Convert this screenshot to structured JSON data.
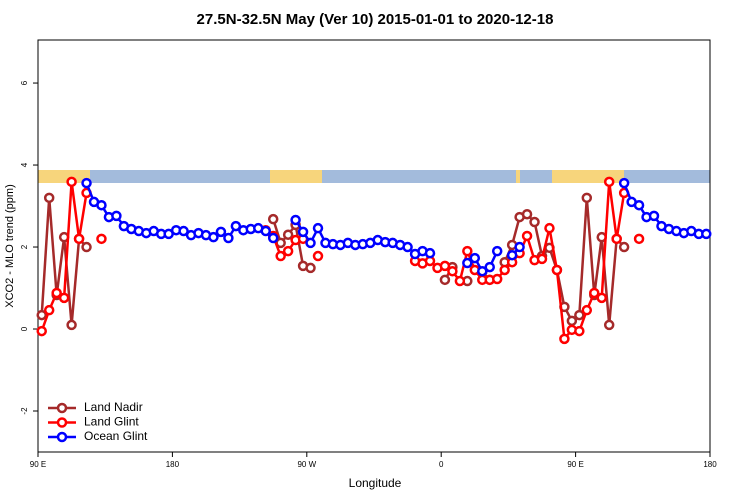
{
  "chart_data": {
    "type": "line",
    "title": "27.5N-32.5N May (Ver 10)   2015-01-01 to 2020-12-18",
    "x_label": "Longitude",
    "y_label": "XCO2 - MLO trend (ppm)",
    "x": [
      92.5,
      97.5,
      102.5,
      107.5,
      112.5,
      117.5,
      122.5,
      127.5,
      132.5,
      137.5,
      142.5,
      147.5,
      152.5,
      157.5,
      162.5,
      167.5,
      172.5,
      177.5,
      182.5,
      187.5,
      192.5,
      197.5,
      202.5,
      207.5,
      212.5,
      217.5,
      222.5,
      227.5,
      232.5,
      237.5,
      242.5,
      247.5,
      252.5,
      257.5,
      262.5,
      267.5,
      272.5,
      277.5,
      282.5,
      287.5,
      292.5,
      297.5,
      302.5,
      307.5,
      312.5,
      317.5,
      322.5,
      327.5,
      332.5,
      337.5,
      342.5,
      347.5,
      352.5,
      357.5,
      362.5,
      367.5,
      372.5,
      377.5,
      382.5,
      387.5,
      392.5,
      397.5,
      402.5,
      407.5,
      412.5,
      417.5,
      422.5,
      427.5,
      432.5,
      437.5,
      442.5,
      447.5,
      452.5,
      457.5,
      462.5,
      467.5,
      472.5,
      477.5,
      482.5,
      487.5,
      492.5,
      497.5,
      502.5,
      507.5,
      512.5,
      517.5,
      522.5,
      527.5,
      532.5,
      537.5
    ],
    "series": [
      {
        "name": "Land Nadir",
        "color": "#a52a2a",
        "values": [
          0.34,
          3.2,
          0.83,
          2.24,
          0.1,
          2.2,
          2.0,
          null,
          null,
          null,
          null,
          null,
          null,
          null,
          null,
          null,
          null,
          null,
          null,
          null,
          null,
          null,
          null,
          null,
          null,
          null,
          null,
          null,
          null,
          null,
          null,
          2.68,
          2.1,
          2.3,
          2.54,
          1.54,
          1.49,
          null,
          null,
          null,
          null,
          null,
          null,
          null,
          null,
          null,
          null,
          null,
          null,
          null,
          null,
          null,
          null,
          null,
          1.2,
          1.51,
          null,
          1.17,
          null,
          1.39,
          1.2,
          null,
          1.63,
          2.05,
          2.73,
          2.8,
          2.61,
          1.78,
          1.98,
          1.44,
          0.54,
          0.2,
          0.34,
          3.2,
          0.83,
          2.24,
          0.1,
          2.2,
          2.0,
          null,
          null,
          null,
          null,
          null,
          null,
          null,
          null,
          null,
          null,
          null
        ]
      },
      {
        "name": "Land Glint",
        "color": "#ff0000",
        "values": [
          -0.05,
          0.46,
          0.88,
          0.76,
          3.59,
          2.2,
          3.32,
          null,
          2.2,
          null,
          null,
          null,
          null,
          null,
          null,
          null,
          null,
          null,
          null,
          null,
          null,
          null,
          null,
          null,
          null,
          null,
          null,
          null,
          null,
          null,
          2.41,
          2.27,
          1.78,
          1.9,
          2.17,
          2.2,
          null,
          1.78,
          null,
          null,
          null,
          null,
          null,
          null,
          null,
          null,
          null,
          null,
          null,
          null,
          1.66,
          1.6,
          1.66,
          1.49,
          1.54,
          1.41,
          1.17,
          1.9,
          1.44,
          1.2,
          1.2,
          1.22,
          1.44,
          1.63,
          1.85,
          2.27,
          1.68,
          1.71,
          2.46,
          1.44,
          -0.24,
          -0.02,
          -0.05,
          0.46,
          0.88,
          0.76,
          3.59,
          2.2,
          3.32,
          null,
          2.2,
          null,
          null,
          null,
          null,
          null,
          null,
          null,
          null,
          null
        ]
      },
      {
        "name": "Ocean Glint",
        "color": "#0000ff",
        "values": [
          null,
          null,
          null,
          null,
          null,
          null,
          3.56,
          3.1,
          3.02,
          2.73,
          2.76,
          2.51,
          2.44,
          2.39,
          2.34,
          2.39,
          2.32,
          2.32,
          2.41,
          2.39,
          2.29,
          2.34,
          2.29,
          2.24,
          2.37,
          2.22,
          2.51,
          2.41,
          2.44,
          2.46,
          2.39,
          2.22,
          null,
          null,
          2.66,
          2.37,
          2.1,
          2.46,
          2.1,
          2.07,
          2.05,
          2.1,
          2.05,
          2.07,
          2.1,
          2.17,
          2.12,
          2.1,
          2.05,
          2.0,
          1.83,
          1.9,
          1.85,
          null,
          null,
          null,
          null,
          1.61,
          1.73,
          1.41,
          1.51,
          1.9,
          null,
          1.8,
          2.0,
          null,
          null,
          null,
          null,
          null,
          null,
          null,
          null,
          null,
          null,
          null,
          null,
          null,
          3.56,
          3.1,
          3.02,
          2.73,
          2.76,
          2.51,
          2.44,
          2.39,
          2.34,
          2.39,
          2.32,
          2.32
        ]
      }
    ],
    "xlim": [
      90,
      540
    ],
    "xticks": [
      {
        "value": 90,
        "label": "90 E"
      },
      180,
      {
        "value": 270,
        "label": "90 W"
      },
      {
        "value": 360,
        "label": "0"
      },
      {
        "value": 450,
        "label": "90 E"
      },
      {
        "value": 540,
        "label": "180"
      }
    ],
    "ylim": [
      -3,
      7.05
    ],
    "yticks": [
      -2,
      0,
      2,
      4,
      6
    ],
    "legend": "bottom-left"
  }
}
